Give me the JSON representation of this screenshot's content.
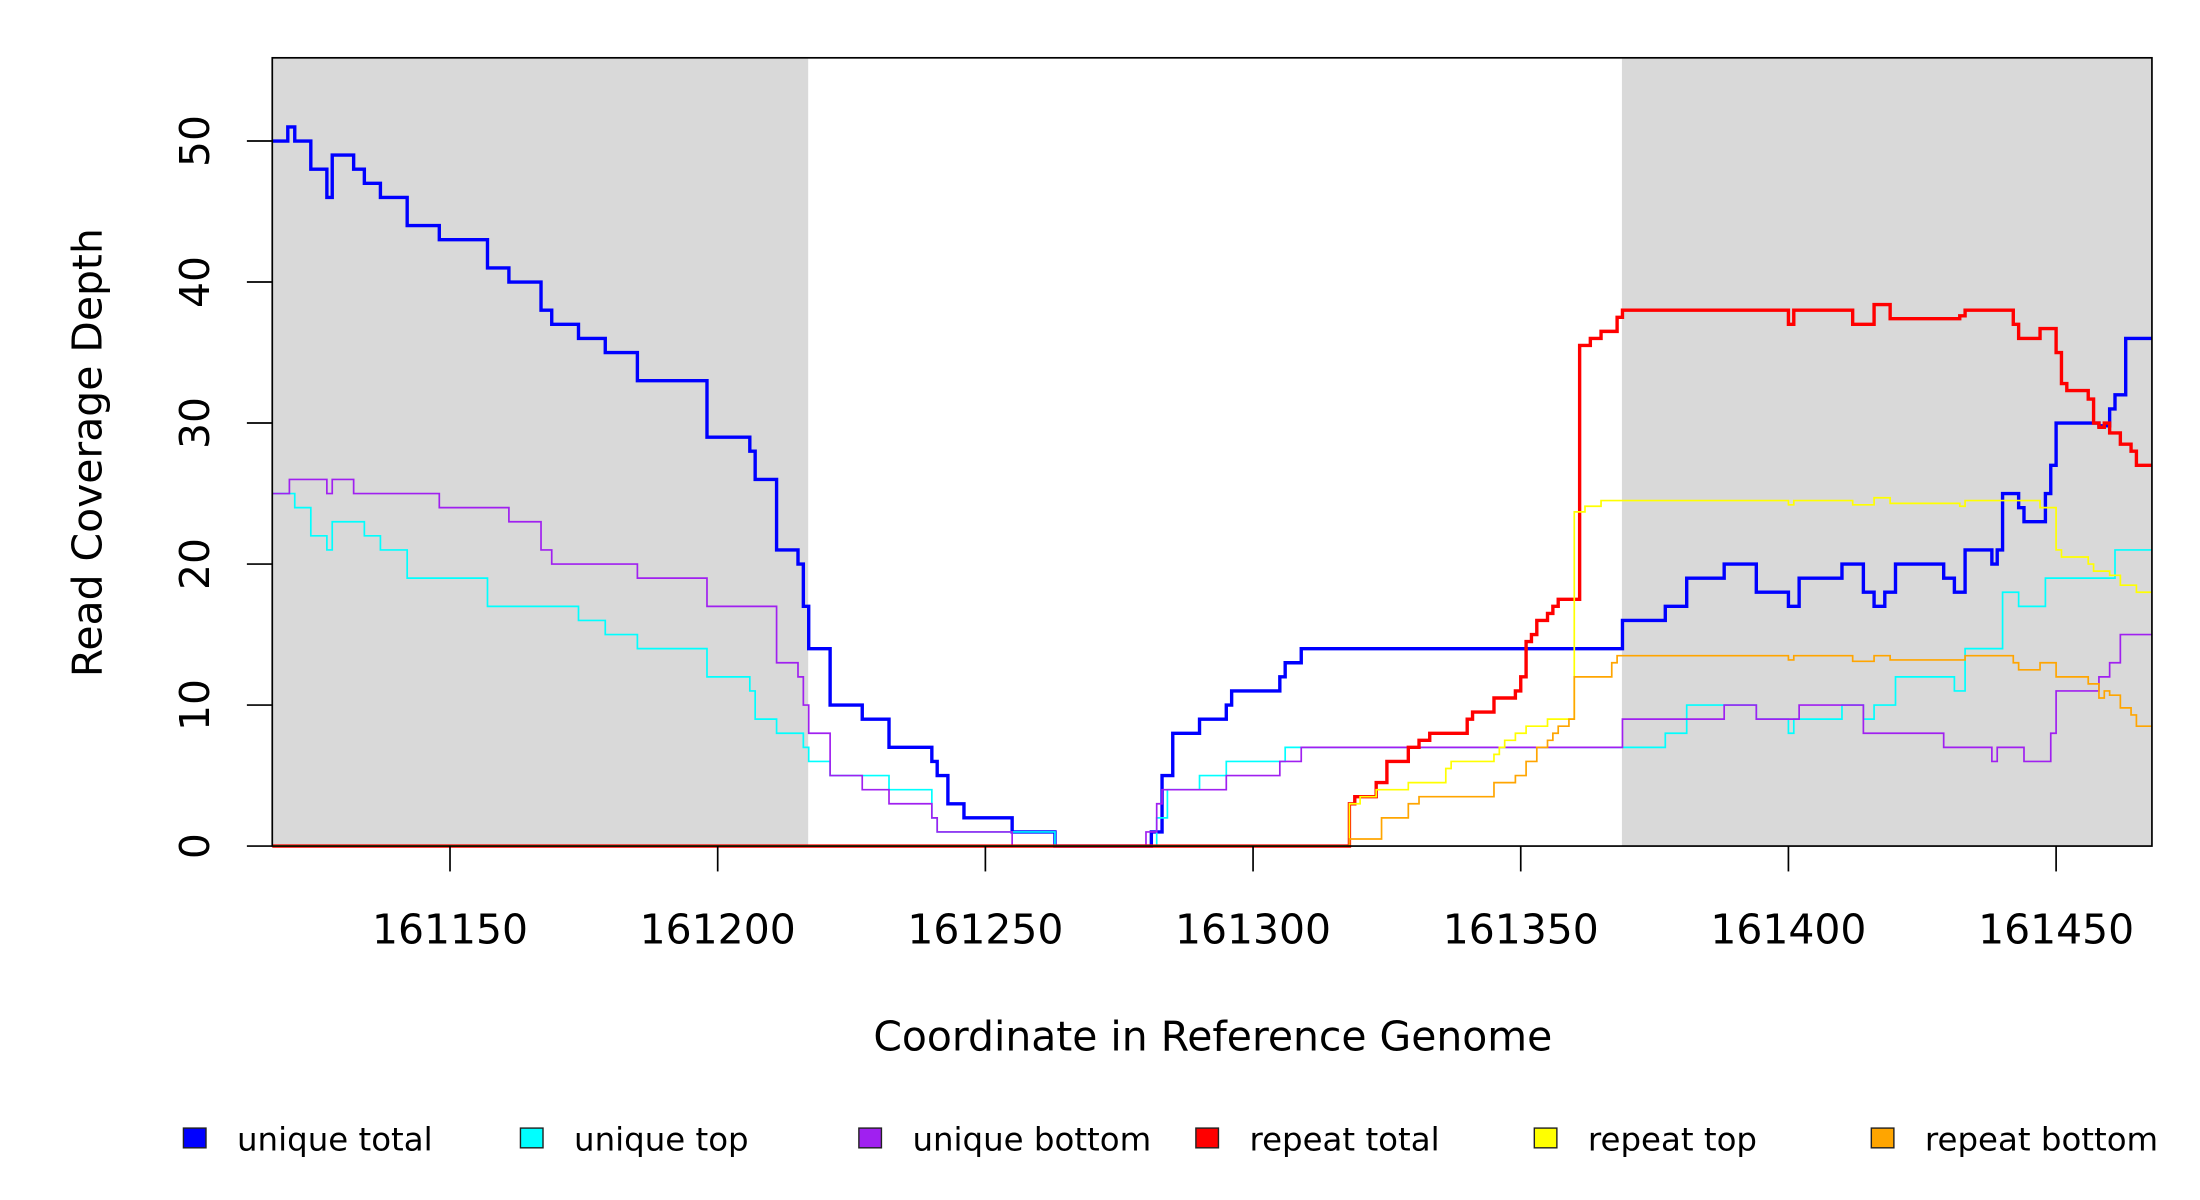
{
  "chart_data": {
    "type": "line",
    "step": true,
    "xlabel": "Coordinate in Reference Genome",
    "ylabel": "Read Coverage Depth",
    "xlim": [
      161116.8,
      161467.9
    ],
    "ylim": [
      0,
      55.9
    ],
    "xticks": [
      161150,
      161200,
      161250,
      161300,
      161350,
      161400,
      161450
    ],
    "xtick_labels": [
      "161150",
      "161200",
      "161250",
      "161300",
      "161350",
      "161400",
      "161450"
    ],
    "yticks": [
      0,
      10,
      20,
      30,
      40,
      50
    ],
    "ytick_labels": [
      "0",
      "10",
      "20",
      "30",
      "40",
      "50"
    ],
    "shaded_regions": [
      [
        161116.8,
        161216.9
      ],
      [
        161368.9,
        161467.9
      ]
    ],
    "shade_color": "#d9d9d9",
    "legend_position": "bottom",
    "series": [
      {
        "name": "unique total",
        "color": "#0000ff",
        "thick": true,
        "points": [
          [
            161116.8,
            50
          ],
          [
            161119.7,
            51
          ],
          [
            161121,
            50
          ],
          [
            161124,
            48
          ],
          [
            161127,
            46
          ],
          [
            161128,
            49
          ],
          [
            161132,
            48
          ],
          [
            161134,
            47
          ],
          [
            161137,
            46
          ],
          [
            161142,
            44
          ],
          [
            161148,
            43
          ],
          [
            161157,
            41
          ],
          [
            161161,
            40
          ],
          [
            161167,
            38
          ],
          [
            161169,
            37
          ],
          [
            161174,
            36
          ],
          [
            161179,
            35
          ],
          [
            161185,
            33
          ],
          [
            161198,
            29
          ],
          [
            161206,
            28
          ],
          [
            161207,
            26
          ],
          [
            161211,
            21
          ],
          [
            161215,
            20
          ],
          [
            161216,
            17
          ],
          [
            161217,
            14
          ],
          [
            161221,
            10
          ],
          [
            161227,
            9
          ],
          [
            161232,
            7
          ],
          [
            161240,
            6
          ],
          [
            161241,
            5
          ],
          [
            161243,
            3
          ],
          [
            161246,
            2
          ],
          [
            161255,
            1
          ],
          [
            161263,
            0
          ],
          [
            161281,
            1
          ],
          [
            161283,
            5
          ],
          [
            161285,
            8
          ],
          [
            161290,
            9
          ],
          [
            161295,
            10
          ],
          [
            161296,
            11
          ],
          [
            161305,
            12
          ],
          [
            161306,
            13
          ],
          [
            161309,
            14
          ],
          [
            161369,
            16
          ],
          [
            161377,
            17
          ],
          [
            161381,
            19
          ],
          [
            161388,
            20
          ],
          [
            161394,
            18
          ],
          [
            161400,
            17
          ],
          [
            161402,
            19
          ],
          [
            161410,
            20
          ],
          [
            161414,
            18
          ],
          [
            161416,
            17
          ],
          [
            161418,
            18
          ],
          [
            161420,
            20
          ],
          [
            161429,
            19
          ],
          [
            161431,
            18
          ],
          [
            161433,
            21
          ],
          [
            161438,
            20
          ],
          [
            161439,
            21
          ],
          [
            161440,
            25
          ],
          [
            161443,
            24
          ],
          [
            161444,
            23
          ],
          [
            161448,
            25
          ],
          [
            161449,
            27
          ],
          [
            161450,
            30
          ],
          [
            161458,
            29.8
          ],
          [
            161460,
            31
          ],
          [
            161461,
            32
          ],
          [
            161463,
            36
          ],
          [
            161467.9,
            36
          ]
        ]
      },
      {
        "name": "unique top",
        "color": "#00ffff",
        "thick": false,
        "points": [
          [
            161116.8,
            25
          ],
          [
            161121,
            24
          ],
          [
            161124,
            22
          ],
          [
            161127,
            21
          ],
          [
            161128,
            23
          ],
          [
            161134,
            22
          ],
          [
            161137,
            21
          ],
          [
            161142,
            19
          ],
          [
            161157,
            17
          ],
          [
            161174,
            16
          ],
          [
            161179,
            15
          ],
          [
            161185,
            14
          ],
          [
            161198,
            12
          ],
          [
            161206,
            11
          ],
          [
            161207,
            9
          ],
          [
            161211,
            8
          ],
          [
            161216,
            7
          ],
          [
            161217,
            6
          ],
          [
            161221,
            5
          ],
          [
            161232,
            4
          ],
          [
            161240,
            2
          ],
          [
            161241,
            1
          ],
          [
            161255,
            1
          ],
          [
            161263,
            0
          ],
          [
            161282,
            2
          ],
          [
            161284,
            4
          ],
          [
            161290,
            5
          ],
          [
            161295,
            6
          ],
          [
            161306,
            7
          ],
          [
            161369,
            7
          ],
          [
            161377,
            8
          ],
          [
            161381,
            10
          ],
          [
            161388,
            10
          ],
          [
            161394,
            9
          ],
          [
            161400,
            8
          ],
          [
            161401,
            9
          ],
          [
            161410,
            10
          ],
          [
            161414,
            9
          ],
          [
            161416,
            10
          ],
          [
            161420,
            12
          ],
          [
            161431,
            11
          ],
          [
            161433,
            14
          ],
          [
            161440,
            18
          ],
          [
            161443,
            17
          ],
          [
            161448,
            19
          ],
          [
            161461,
            21
          ],
          [
            161467.9,
            21
          ]
        ]
      },
      {
        "name": "unique bottom",
        "color": "#a020f0",
        "thick": false,
        "points": [
          [
            161116.8,
            25
          ],
          [
            161120,
            26
          ],
          [
            161127,
            25
          ],
          [
            161128,
            26
          ],
          [
            161132,
            25
          ],
          [
            161148,
            24
          ],
          [
            161161,
            23
          ],
          [
            161167,
            21
          ],
          [
            161169,
            20
          ],
          [
            161185,
            19
          ],
          [
            161198,
            17
          ],
          [
            161211,
            13
          ],
          [
            161215,
            12
          ],
          [
            161216,
            10
          ],
          [
            161217,
            8
          ],
          [
            161221,
            5
          ],
          [
            161227,
            4
          ],
          [
            161232,
            3
          ],
          [
            161240,
            2
          ],
          [
            161241,
            1
          ],
          [
            161255,
            0
          ],
          [
            161280,
            1
          ],
          [
            161282,
            3
          ],
          [
            161283,
            4
          ],
          [
            161295,
            5
          ],
          [
            161305,
            6
          ],
          [
            161309,
            7
          ],
          [
            161369,
            9
          ],
          [
            161388,
            10
          ],
          [
            161394,
            9
          ],
          [
            161402,
            10
          ],
          [
            161414,
            8
          ],
          [
            161429,
            7
          ],
          [
            161438,
            6
          ],
          [
            161439,
            7
          ],
          [
            161444,
            6
          ],
          [
            161449,
            8
          ],
          [
            161450,
            11
          ],
          [
            161458,
            12
          ],
          [
            161460,
            13
          ],
          [
            161462,
            15
          ],
          [
            161467.9,
            15
          ]
        ]
      },
      {
        "name": "repeat total",
        "color": "#ff0000",
        "thick": true,
        "points": [
          [
            161116.8,
            0
          ],
          [
            161318,
            3
          ],
          [
            161319,
            3.5
          ],
          [
            161323,
            4.5
          ],
          [
            161325,
            6
          ],
          [
            161329,
            7
          ],
          [
            161331,
            7.5
          ],
          [
            161333,
            8
          ],
          [
            161340,
            9
          ],
          [
            161341,
            9.5
          ],
          [
            161345,
            10.5
          ],
          [
            161349,
            11
          ],
          [
            161350,
            12
          ],
          [
            161351,
            14.5
          ],
          [
            161352,
            15
          ],
          [
            161353,
            16
          ],
          [
            161355,
            16.5
          ],
          [
            161356,
            17
          ],
          [
            161357,
            17.5
          ],
          [
            161361,
            35.5
          ],
          [
            161363,
            36
          ],
          [
            161365,
            36.5
          ],
          [
            161368,
            37.5
          ],
          [
            161369,
            38
          ],
          [
            161400,
            37
          ],
          [
            161401,
            38
          ],
          [
            161412,
            37
          ],
          [
            161416,
            38.4
          ],
          [
            161419,
            37.4
          ],
          [
            161432,
            37.6
          ],
          [
            161433,
            38
          ],
          [
            161442,
            37
          ],
          [
            161443,
            36
          ],
          [
            161447,
            36.7
          ],
          [
            161450,
            35
          ],
          [
            161451,
            32.8
          ],
          [
            161452,
            32.3
          ],
          [
            161456,
            31.7
          ],
          [
            161457,
            30
          ],
          [
            161458,
            29.7
          ],
          [
            161459,
            30
          ],
          [
            161460,
            29.3
          ],
          [
            161462,
            28.5
          ],
          [
            161464,
            28
          ],
          [
            161465,
            27
          ],
          [
            161467.9,
            27
          ]
        ]
      },
      {
        "name": "repeat top",
        "color": "#ffff00",
        "thick": false,
        "points": [
          [
            161116.8,
            0
          ],
          [
            161318,
            3
          ],
          [
            161320,
            3.5
          ],
          [
            161323,
            4
          ],
          [
            161329,
            4.5
          ],
          [
            161336,
            5.5
          ],
          [
            161337,
            6
          ],
          [
            161345,
            6.5
          ],
          [
            161346,
            7
          ],
          [
            161347,
            7.5
          ],
          [
            161349,
            8
          ],
          [
            161351,
            8.5
          ],
          [
            161355,
            9
          ],
          [
            161360,
            23.7
          ],
          [
            161362,
            24.1
          ],
          [
            161365,
            24.5
          ],
          [
            161400,
            24.2
          ],
          [
            161401,
            24.5
          ],
          [
            161412,
            24.2
          ],
          [
            161416,
            24.7
          ],
          [
            161419,
            24.3
          ],
          [
            161432,
            24.1
          ],
          [
            161433,
            24.5
          ],
          [
            161447,
            24
          ],
          [
            161450,
            21
          ],
          [
            161451,
            20.5
          ],
          [
            161456,
            20
          ],
          [
            161457,
            19.5
          ],
          [
            161460,
            19.2
          ],
          [
            161462,
            18.5
          ],
          [
            161465,
            18
          ],
          [
            161467.9,
            18
          ]
        ]
      },
      {
        "name": "repeat bottom",
        "color": "#ffa500",
        "thick": false,
        "points": [
          [
            161116.8,
            0
          ],
          [
            161318,
            0.5
          ],
          [
            161324,
            2
          ],
          [
            161329,
            3
          ],
          [
            161331,
            3.5
          ],
          [
            161345,
            4.5
          ],
          [
            161349,
            5
          ],
          [
            161351,
            6
          ],
          [
            161353,
            7
          ],
          [
            161355,
            7.5
          ],
          [
            161356,
            8
          ],
          [
            161357,
            8.5
          ],
          [
            161359,
            9
          ],
          [
            161360,
            12
          ],
          [
            161367,
            13
          ],
          [
            161368,
            13.5
          ],
          [
            161400,
            13.2
          ],
          [
            161401,
            13.5
          ],
          [
            161412,
            13.1
          ],
          [
            161416,
            13.5
          ],
          [
            161419,
            13.2
          ],
          [
            161433,
            13.5
          ],
          [
            161442,
            13
          ],
          [
            161443,
            12.5
          ],
          [
            161447,
            13
          ],
          [
            161450,
            12
          ],
          [
            161456,
            11.5
          ],
          [
            161458,
            10.5
          ],
          [
            161459,
            11
          ],
          [
            161460,
            10.7
          ],
          [
            161462,
            9.8
          ],
          [
            161464,
            9.3
          ],
          [
            161465,
            8.5
          ],
          [
            161467.9,
            8.5
          ]
        ]
      }
    ]
  }
}
